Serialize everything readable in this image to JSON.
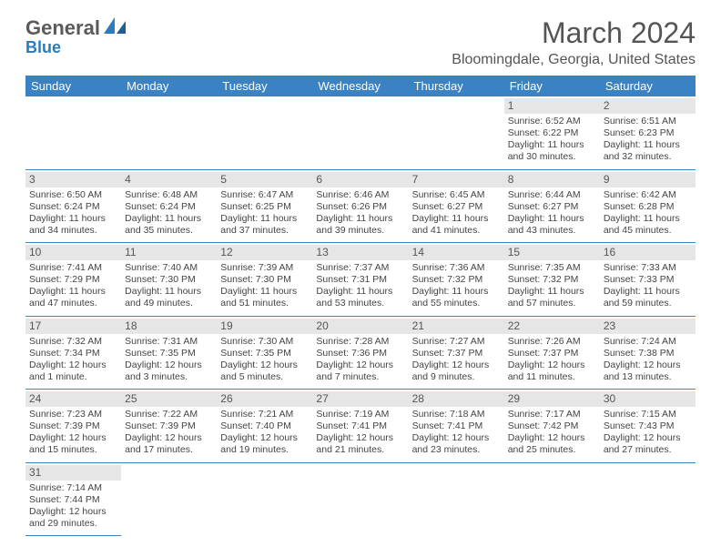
{
  "logo": {
    "part1": "General",
    "part2": "Blue"
  },
  "title": "March 2024",
  "location": "Bloomingdale, Georgia, United States",
  "colors": {
    "header_bg": "#3b82c4",
    "header_text": "#ffffff",
    "daynum_bg": "#e6e6e6",
    "rule": "#3b82c4",
    "logo_gray": "#5a5a5a",
    "logo_blue": "#2b7bbd"
  },
  "day_headers": [
    "Sunday",
    "Monday",
    "Tuesday",
    "Wednesday",
    "Thursday",
    "Friday",
    "Saturday"
  ],
  "weeks": [
    [
      {
        "n": "",
        "l": []
      },
      {
        "n": "",
        "l": []
      },
      {
        "n": "",
        "l": []
      },
      {
        "n": "",
        "l": []
      },
      {
        "n": "",
        "l": []
      },
      {
        "n": "1",
        "l": [
          "Sunrise: 6:52 AM",
          "Sunset: 6:22 PM",
          "Daylight: 11 hours",
          "and 30 minutes."
        ]
      },
      {
        "n": "2",
        "l": [
          "Sunrise: 6:51 AM",
          "Sunset: 6:23 PM",
          "Daylight: 11 hours",
          "and 32 minutes."
        ]
      }
    ],
    [
      {
        "n": "3",
        "l": [
          "Sunrise: 6:50 AM",
          "Sunset: 6:24 PM",
          "Daylight: 11 hours",
          "and 34 minutes."
        ]
      },
      {
        "n": "4",
        "l": [
          "Sunrise: 6:48 AM",
          "Sunset: 6:24 PM",
          "Daylight: 11 hours",
          "and 35 minutes."
        ]
      },
      {
        "n": "5",
        "l": [
          "Sunrise: 6:47 AM",
          "Sunset: 6:25 PM",
          "Daylight: 11 hours",
          "and 37 minutes."
        ]
      },
      {
        "n": "6",
        "l": [
          "Sunrise: 6:46 AM",
          "Sunset: 6:26 PM",
          "Daylight: 11 hours",
          "and 39 minutes."
        ]
      },
      {
        "n": "7",
        "l": [
          "Sunrise: 6:45 AM",
          "Sunset: 6:27 PM",
          "Daylight: 11 hours",
          "and 41 minutes."
        ]
      },
      {
        "n": "8",
        "l": [
          "Sunrise: 6:44 AM",
          "Sunset: 6:27 PM",
          "Daylight: 11 hours",
          "and 43 minutes."
        ]
      },
      {
        "n": "9",
        "l": [
          "Sunrise: 6:42 AM",
          "Sunset: 6:28 PM",
          "Daylight: 11 hours",
          "and 45 minutes."
        ]
      }
    ],
    [
      {
        "n": "10",
        "l": [
          "Sunrise: 7:41 AM",
          "Sunset: 7:29 PM",
          "Daylight: 11 hours",
          "and 47 minutes."
        ]
      },
      {
        "n": "11",
        "l": [
          "Sunrise: 7:40 AM",
          "Sunset: 7:30 PM",
          "Daylight: 11 hours",
          "and 49 minutes."
        ]
      },
      {
        "n": "12",
        "l": [
          "Sunrise: 7:39 AM",
          "Sunset: 7:30 PM",
          "Daylight: 11 hours",
          "and 51 minutes."
        ]
      },
      {
        "n": "13",
        "l": [
          "Sunrise: 7:37 AM",
          "Sunset: 7:31 PM",
          "Daylight: 11 hours",
          "and 53 minutes."
        ]
      },
      {
        "n": "14",
        "l": [
          "Sunrise: 7:36 AM",
          "Sunset: 7:32 PM",
          "Daylight: 11 hours",
          "and 55 minutes."
        ]
      },
      {
        "n": "15",
        "l": [
          "Sunrise: 7:35 AM",
          "Sunset: 7:32 PM",
          "Daylight: 11 hours",
          "and 57 minutes."
        ]
      },
      {
        "n": "16",
        "l": [
          "Sunrise: 7:33 AM",
          "Sunset: 7:33 PM",
          "Daylight: 11 hours",
          "and 59 minutes."
        ]
      }
    ],
    [
      {
        "n": "17",
        "l": [
          "Sunrise: 7:32 AM",
          "Sunset: 7:34 PM",
          "Daylight: 12 hours",
          "and 1 minute."
        ]
      },
      {
        "n": "18",
        "l": [
          "Sunrise: 7:31 AM",
          "Sunset: 7:35 PM",
          "Daylight: 12 hours",
          "and 3 minutes."
        ]
      },
      {
        "n": "19",
        "l": [
          "Sunrise: 7:30 AM",
          "Sunset: 7:35 PM",
          "Daylight: 12 hours",
          "and 5 minutes."
        ]
      },
      {
        "n": "20",
        "l": [
          "Sunrise: 7:28 AM",
          "Sunset: 7:36 PM",
          "Daylight: 12 hours",
          "and 7 minutes."
        ]
      },
      {
        "n": "21",
        "l": [
          "Sunrise: 7:27 AM",
          "Sunset: 7:37 PM",
          "Daylight: 12 hours",
          "and 9 minutes."
        ]
      },
      {
        "n": "22",
        "l": [
          "Sunrise: 7:26 AM",
          "Sunset: 7:37 PM",
          "Daylight: 12 hours",
          "and 11 minutes."
        ]
      },
      {
        "n": "23",
        "l": [
          "Sunrise: 7:24 AM",
          "Sunset: 7:38 PM",
          "Daylight: 12 hours",
          "and 13 minutes."
        ]
      }
    ],
    [
      {
        "n": "24",
        "l": [
          "Sunrise: 7:23 AM",
          "Sunset: 7:39 PM",
          "Daylight: 12 hours",
          "and 15 minutes."
        ]
      },
      {
        "n": "25",
        "l": [
          "Sunrise: 7:22 AM",
          "Sunset: 7:39 PM",
          "Daylight: 12 hours",
          "and 17 minutes."
        ]
      },
      {
        "n": "26",
        "l": [
          "Sunrise: 7:21 AM",
          "Sunset: 7:40 PM",
          "Daylight: 12 hours",
          "and 19 minutes."
        ]
      },
      {
        "n": "27",
        "l": [
          "Sunrise: 7:19 AM",
          "Sunset: 7:41 PM",
          "Daylight: 12 hours",
          "and 21 minutes."
        ]
      },
      {
        "n": "28",
        "l": [
          "Sunrise: 7:18 AM",
          "Sunset: 7:41 PM",
          "Daylight: 12 hours",
          "and 23 minutes."
        ]
      },
      {
        "n": "29",
        "l": [
          "Sunrise: 7:17 AM",
          "Sunset: 7:42 PM",
          "Daylight: 12 hours",
          "and 25 minutes."
        ]
      },
      {
        "n": "30",
        "l": [
          "Sunrise: 7:15 AM",
          "Sunset: 7:43 PM",
          "Daylight: 12 hours",
          "and 27 minutes."
        ]
      }
    ],
    [
      {
        "n": "31",
        "l": [
          "Sunrise: 7:14 AM",
          "Sunset: 7:44 PM",
          "Daylight: 12 hours",
          "and 29 minutes."
        ]
      },
      {
        "n": "",
        "l": []
      },
      {
        "n": "",
        "l": []
      },
      {
        "n": "",
        "l": []
      },
      {
        "n": "",
        "l": []
      },
      {
        "n": "",
        "l": []
      },
      {
        "n": "",
        "l": []
      }
    ]
  ]
}
